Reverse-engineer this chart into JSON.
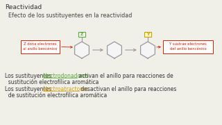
{
  "bg_color": "#f0efe8",
  "title": "Reactividad",
  "subtitle": "Efecto de los sustituyentes en la reactividad",
  "title_color": "#333333",
  "subtitle_color": "#444444",
  "line1_full": "Los sustituyentes electrodonadores activan el anillo para reacciones de\n  sustitución electrofílica aromática",
  "line1_prefix": "Los sustituyentes ",
  "line1_keyword": "electrodonadores",
  "line1_suffix": " activan el anillo para reacciones de",
  "line1_cont": "  sustitución electrofílica aromática",
  "line2_prefix": "Los sustituyentes ",
  "line2_keyword": "electroatractores",
  "line2_suffix": " desactivan el anillo para reacciones",
  "line2_cont": "  de sustitución electrofílica aromática",
  "keyword1_color": "#5aaa3a",
  "keyword2_color": "#d4a020",
  "text_color": "#333333",
  "box1_border": "#cc2200",
  "box2_border": "#cc2200",
  "box1_text_color": "#cc2200",
  "box2_text_color": "#cc2200",
  "z_label_color": "#5aaa3a",
  "y_label_color": "#c8a000",
  "arrow_color": "#999999",
  "hex_edge": "#999999",
  "hex_face": "#f5f5f5"
}
